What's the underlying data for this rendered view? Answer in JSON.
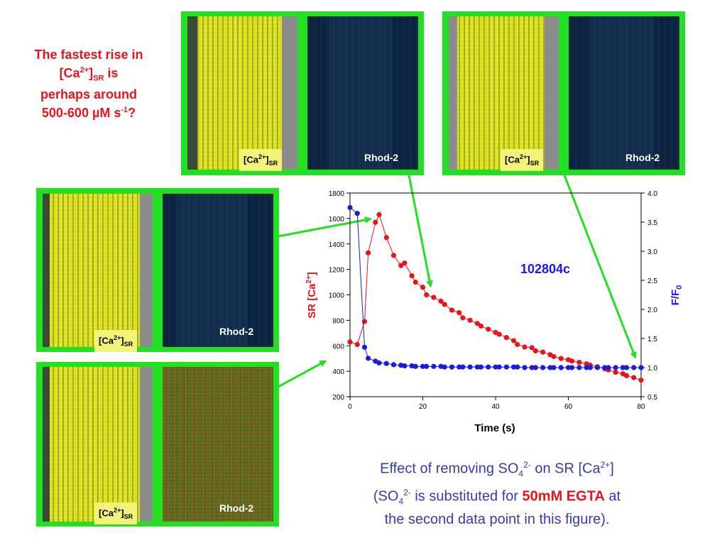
{
  "note": {
    "line1": "The fastest rise in",
    "line2a": "[Ca",
    "line2sup": "2+",
    "line2b": "]",
    "line2sub": "SR",
    "line2c": " is",
    "line3": "perhaps around",
    "line4a": "500-600 µM s",
    "line4sup": "-1",
    "line4b": "?"
  },
  "panels": [
    {
      "ca_label": {
        "a": "[Ca",
        "sup": "2+",
        "b": "]",
        "sub": "SR"
      },
      "rhod_label": "Rhod-2"
    },
    {
      "ca_label": {
        "a": "[Ca",
        "sup": "2+",
        "b": "]",
        "sub": "SR"
      },
      "rhod_label": "Rhod-2"
    },
    {
      "ca_label": {
        "a": "[Ca",
        "sup": "2+",
        "b": "]",
        "sub": "SR"
      },
      "rhod_label": "Rhod-2"
    },
    {
      "ca_label": {
        "a": "[Ca",
        "sup": "2+",
        "b": "]",
        "sub": "SR"
      },
      "rhod_label": "Rhod-2"
    }
  ],
  "caption": {
    "l1a": "Effect of removing SO",
    "l1sub": "4",
    "l1sup": "2-",
    "l1b": " on SR [Ca",
    "l1sup2": "2+",
    "l1c": "]",
    "l2a": "(SO",
    "l2sub": "4",
    "l2sup": "2-",
    "l2b": " is substituted for ",
    "l2red": "50mM EGTA",
    "l2c": " at",
    "l3": "the second data point in this figure)."
  },
  "colors": {
    "sr": "#e8141b",
    "ff0": "#1a1ae0",
    "arrow": "#22e022",
    "panel": "#22e022"
  },
  "chart_data": {
    "type": "line",
    "annotation": "102804c",
    "xlabel": "Time (s)",
    "ylabel_left": {
      "a": "SR [Ca",
      "sup": "2+",
      "b": "]"
    },
    "ylabel_right": {
      "a": "F/F",
      "sub": "0"
    },
    "xlim": [
      0,
      80
    ],
    "ylim_left": [
      200,
      1800
    ],
    "ylim_right": [
      0.5,
      4.0
    ],
    "x_ticks": [
      "0",
      "20",
      "40",
      "60",
      "80"
    ],
    "y_ticks_left": [
      "200",
      "400",
      "600",
      "800",
      "1000",
      "1200",
      "1400",
      "1600",
      "1800"
    ],
    "y_ticks_right": [
      "0.5",
      "1.0",
      "1.5",
      "2.0",
      "2.5",
      "3.0",
      "3.5",
      "4.0"
    ],
    "series": [
      {
        "axis": "left",
        "x": [
          0,
          2,
          4,
          5,
          7,
          8,
          10,
          12,
          14,
          15,
          17,
          18,
          20,
          21,
          23,
          25,
          26,
          28,
          30,
          31,
          33,
          35,
          36,
          38,
          40,
          41,
          43,
          45,
          46,
          48,
          50,
          51,
          53,
          55,
          56,
          58,
          60,
          61,
          63,
          65,
          66,
          68,
          70,
          71,
          73,
          75,
          76,
          78,
          80
        ],
        "y": [
          630,
          610,
          790,
          1330,
          1570,
          1630,
          1450,
          1310,
          1230,
          1250,
          1150,
          1100,
          1060,
          1000,
          980,
          950,
          925,
          880,
          860,
          820,
          800,
          775,
          755,
          730,
          705,
          690,
          665,
          640,
          610,
          590,
          585,
          560,
          550,
          530,
          515,
          500,
          490,
          480,
          470,
          458,
          448,
          435,
          420,
          410,
          392,
          380,
          365,
          350,
          330
        ]
      },
      {
        "axis": "right",
        "x": [
          0,
          2,
          4,
          5,
          7,
          8,
          10,
          12,
          14,
          15,
          17,
          18,
          20,
          21,
          23,
          25,
          26,
          28,
          30,
          31,
          33,
          35,
          36,
          38,
          40,
          41,
          43,
          45,
          46,
          48,
          50,
          51,
          53,
          55,
          56,
          58,
          60,
          61,
          63,
          65,
          66,
          68,
          70,
          71,
          73,
          75,
          76,
          78,
          80
        ],
        "y": [
          3.75,
          3.65,
          1.35,
          1.16,
          1.11,
          1.08,
          1.07,
          1.05,
          1.04,
          1.03,
          1.03,
          1.02,
          1.02,
          1.02,
          1.02,
          1.02,
          1.01,
          1.01,
          1.01,
          1.01,
          1.01,
          1.01,
          1.01,
          1.01,
          1.01,
          1.01,
          1.01,
          1.01,
          1.01,
          1.0,
          1.0,
          1.0,
          1.0,
          1.0,
          1.0,
          1.0,
          1.0,
          1.0,
          1.0,
          1.0,
          1.0,
          1.0,
          1.0,
          1.0,
          1.0,
          1.0,
          1.0,
          1.0,
          1.0
        ]
      }
    ]
  }
}
